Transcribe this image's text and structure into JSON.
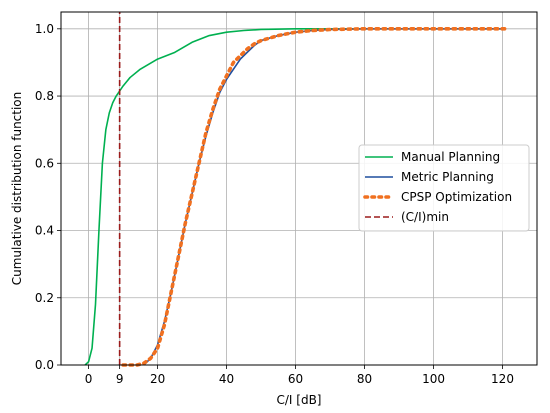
{
  "chart_data": {
    "type": "line",
    "title": "",
    "xlabel": "C/I [dB]",
    "ylabel": "Cumulative distribution function",
    "xlim": [
      -8,
      130
    ],
    "ylim": [
      0,
      1.05
    ],
    "grid": true,
    "legend_position": "center-right",
    "xticks": [
      0,
      9,
      20,
      40,
      60,
      80,
      100,
      120
    ],
    "xtick_labels": [
      "0",
      "9",
      "20",
      "40",
      "60",
      "80",
      "100",
      "120"
    ],
    "yticks": [
      0.0,
      0.2,
      0.4,
      0.6,
      0.8,
      1.0
    ],
    "ytick_labels": [
      "0.0",
      "0.2",
      "0.4",
      "0.6",
      "0.8",
      "1.0"
    ],
    "series": [
      {
        "name": "Manual Planning",
        "color": "#00b050",
        "style": "solid",
        "x": [
          -1,
          0,
          1,
          2,
          3,
          4,
          5,
          6,
          7,
          8,
          10,
          12,
          15,
          20,
          25,
          30,
          35,
          40,
          45,
          50,
          60,
          70,
          80,
          90,
          100,
          110,
          120
        ],
        "y": [
          0.0,
          0.01,
          0.05,
          0.18,
          0.4,
          0.6,
          0.7,
          0.75,
          0.78,
          0.8,
          0.83,
          0.855,
          0.88,
          0.91,
          0.93,
          0.96,
          0.98,
          0.99,
          0.995,
          0.998,
          1.0,
          1.0,
          1.0,
          1.0,
          1.0,
          1.0,
          1.0
        ]
      },
      {
        "name": "Metric Planning",
        "color": "#1f4e9e",
        "style": "solid",
        "x": [
          16,
          18,
          20,
          22,
          24,
          26,
          28,
          30,
          32,
          34,
          36,
          38,
          40,
          42,
          44,
          46,
          48,
          50,
          55,
          60,
          65,
          70,
          75,
          80,
          90,
          100,
          110,
          120
        ],
        "y": [
          0.0,
          0.02,
          0.06,
          0.13,
          0.22,
          0.32,
          0.42,
          0.51,
          0.6,
          0.68,
          0.75,
          0.81,
          0.85,
          0.88,
          0.91,
          0.93,
          0.95,
          0.965,
          0.98,
          0.99,
          0.995,
          0.998,
          0.999,
          1.0,
          1.0,
          1.0,
          1.0,
          1.0
        ]
      },
      {
        "name": "CPSP Optimization",
        "color": "#f07020",
        "style": "dotted",
        "x": [
          10,
          14,
          16,
          18,
          20,
          22,
          24,
          26,
          28,
          30,
          32,
          34,
          36,
          38,
          40,
          42,
          44,
          46,
          48,
          50,
          55,
          60,
          65,
          70,
          80,
          90,
          100,
          110,
          121
        ],
        "y": [
          0.0,
          0.0,
          0.005,
          0.02,
          0.05,
          0.12,
          0.22,
          0.32,
          0.42,
          0.51,
          0.6,
          0.69,
          0.76,
          0.82,
          0.86,
          0.9,
          0.92,
          0.94,
          0.955,
          0.965,
          0.98,
          0.99,
          0.995,
          0.998,
          1.0,
          1.0,
          1.0,
          1.0,
          1.0
        ]
      },
      {
        "name": "(C/I)min",
        "color": "#9b1b1b",
        "style": "dashed",
        "x": [
          9,
          9
        ],
        "y": [
          0,
          1.05
        ]
      }
    ]
  }
}
